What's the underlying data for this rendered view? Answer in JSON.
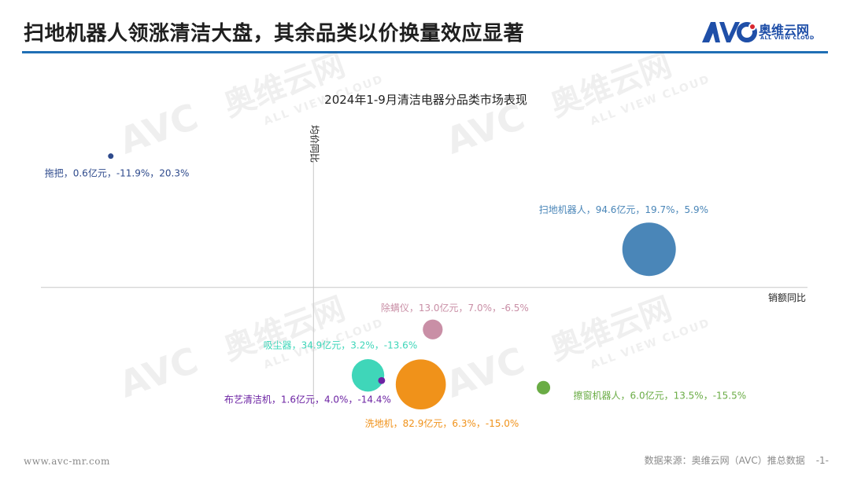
{
  "header": {
    "title": "扫地机器人领涨清洁大盘，其余品类以价换量效应显著"
  },
  "logo": {
    "mark": "AVC",
    "name_cn": "奥维云网",
    "name_en": "ALL VIEW CLOUD",
    "color": "#1f4fa8"
  },
  "watermark": {
    "mark": "AVC",
    "name_cn": "奥维云网",
    "name_en": "ALL VIEW CLOUD"
  },
  "chart_data": {
    "type": "bubble",
    "title": "2024年1-9月清洁电器分品类市场表现",
    "xlabel": "销额同比",
    "ylabel": "均价同比",
    "xlim": [
      -16,
      29
    ],
    "ylim": [
      -18.5,
      25
    ],
    "grid": false,
    "series": [
      {
        "name": "扫地机器人",
        "label": "扫地机器人，94.6亿元，19.7%，5.9%",
        "sales": 94.6,
        "x": 19.7,
        "y": 5.9,
        "color": "#4a86b8"
      },
      {
        "name": "除螨仪",
        "label": "除螨仪，13.0亿元，7.0%，-6.5%",
        "sales": 13.0,
        "x": 7.0,
        "y": -6.5,
        "color": "#c98fa6"
      },
      {
        "name": "吸尘器",
        "label": "吸尘器，34.9亿元，3.2%，-13.6%",
        "sales": 34.9,
        "x": 3.2,
        "y": -13.6,
        "color": "#3fd6b9"
      },
      {
        "name": "布艺清洁机",
        "label": "布艺清洁机，1.6亿元，4.0%，-14.4%",
        "sales": 1.6,
        "x": 4.0,
        "y": -14.4,
        "color": "#6c23a3"
      },
      {
        "name": "洗地机",
        "label": "洗地机，82.9亿元，6.3%，-15.0%",
        "sales": 82.9,
        "x": 6.3,
        "y": -15.0,
        "color": "#f0921a"
      },
      {
        "name": "擦窗机器人",
        "label": "擦窗机器人，6.0亿元，13.5%，-15.5%",
        "sales": 6.0,
        "x": 13.5,
        "y": -15.5,
        "color": "#6aac45"
      },
      {
        "name": "拖把",
        "label": "拖把，0.6亿元，-11.9%，20.3%",
        "sales": 0.6,
        "x": -11.9,
        "y": 20.3,
        "color": "#2e4a8c"
      }
    ]
  },
  "footer": {
    "website": "www.avc-mr.com",
    "source": "数据来源：奥维云网（AVC）推总数据",
    "page": "-1-"
  }
}
